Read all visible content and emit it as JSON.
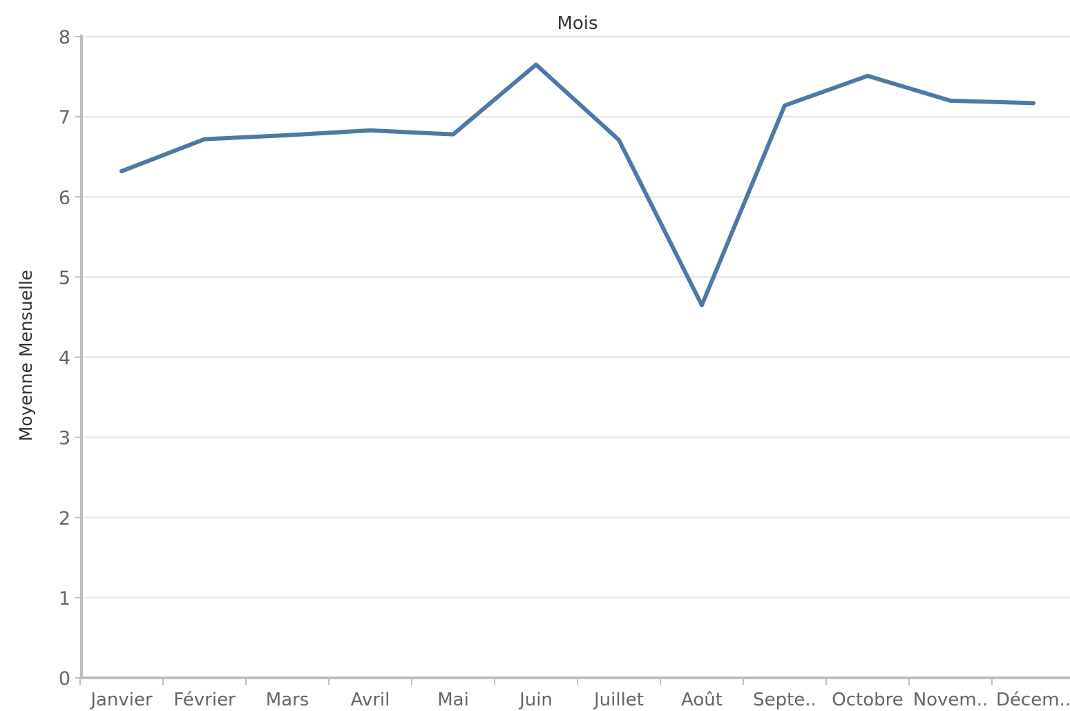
{
  "chart_data": {
    "type": "line",
    "title": "Mois",
    "xlabel": "",
    "ylabel": "Moyenne Mensuelle",
    "categories": [
      "Janvier",
      "Février",
      "Mars",
      "Avril",
      "Mai",
      "Juin",
      "Juillet",
      "Août",
      "Septe..",
      "Octobre",
      "Novem..",
      "Décem.."
    ],
    "series": [
      {
        "values": [
          6.32,
          6.72,
          6.77,
          6.83,
          6.78,
          7.65,
          6.71,
          4.65,
          7.14,
          7.51,
          7.2,
          7.17
        ]
      }
    ],
    "ylim": [
      0,
      8
    ],
    "yticks": [
      "0",
      "1",
      "2",
      "3",
      "4",
      "5",
      "6",
      "7",
      "8"
    ],
    "grid": "horizontal",
    "legend": "none",
    "colors": {
      "line": "#4E79A7",
      "grid": "#EBEBEB",
      "axis": "#BDBDBD"
    }
  }
}
